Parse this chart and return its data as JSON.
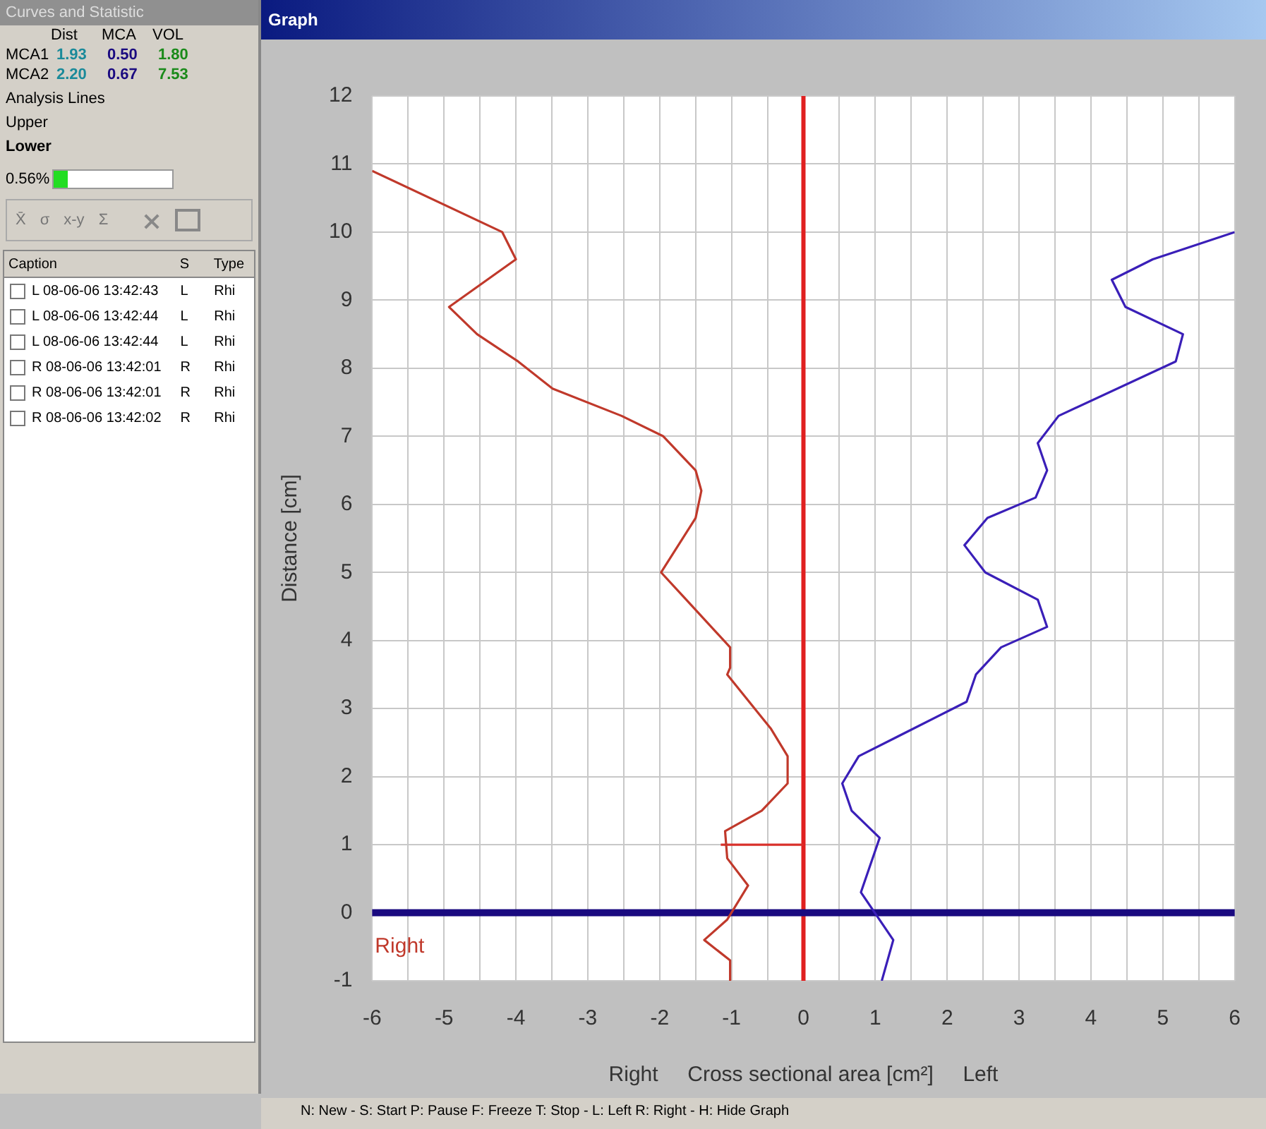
{
  "chart_data": [
    {
      "type": "other",
      "title": "Curves and Statistic",
      "annotations": [
        "Dist  MCA  VOL",
        "MCA1  1.93  0.50  1.80",
        "MCA2  2.20  0.67  7.53",
        "Analysis Lines",
        "Upper",
        "Lower",
        "0.56%",
        "X̄  σ  x-y  Σ",
        "Caption  S  Type",
        "L 08-06-06 13:42:43  L  Rhi",
        "L 08-06-06 13:42:44  L  Rhi",
        "L 08-06-06 13:42:44  L  Rhi",
        "R 08-06-06 13:42:01  R  Rhi",
        "R 08-06-06 13:42:01  R  Rhi",
        "R 08-06-06 13:42:02  R  Rhi"
      ]
    },
    {
      "type": "line",
      "title": "Graph",
      "xlabel": "Right     Cross sectional area [cm²]     Left",
      "ylabel": "Distance [cm]",
      "xlim": [
        -6,
        6
      ],
      "xticks": [
        -6,
        {
          "value": -5.5,
          "label": null
        },
        -5,
        {
          "value": -4.5,
          "label": null
        },
        -4,
        {
          "value": -3.5,
          "label": null
        },
        -3,
        {
          "value": -2.5,
          "label": null
        },
        -2,
        {
          "value": -1.5,
          "label": null
        },
        -1,
        {
          "value": -0.5,
          "label": null
        },
        0,
        {
          "value": 0.5,
          "label": null
        },
        1,
        {
          "value": 1.5,
          "label": null
        },
        2,
        {
          "value": 2.5,
          "label": null
        },
        3,
        {
          "value": 3.5,
          "label": null
        },
        4,
        {
          "value": 4.5,
          "label": null
        },
        5,
        {
          "value": 5.5,
          "label": null
        },
        6
      ],
      "ylim": [
        -1,
        12
      ],
      "yticks": [
        -1,
        0,
        1,
        2,
        3,
        4,
        5,
        6,
        7,
        8,
        9,
        10,
        11,
        12
      ],
      "grid": true,
      "legend": false,
      "series": [
        {
          "color": "#c0392b",
          "x": [
            -6,
            -4.19,
            -4.0,
            -4.93,
            -4.54,
            -3.97,
            -3.49,
            -2.53,
            -1.95,
            -1.5,
            -1.42,
            -1.5,
            -1.98,
            -1.63,
            -1.02,
            -1.02,
            -1.06,
            -0.45,
            -0.22,
            -0.22,
            -0.58,
            -1.09,
            -1.06,
            -0.77,
            -1.06,
            -1.38,
            -1.02,
            -1.02
          ],
          "values": [
            10.9,
            10.0,
            9.6,
            8.9,
            8.5,
            8.1,
            7.7,
            7.3,
            7.0,
            6.5,
            6.2,
            5.8,
            5.0,
            4.6,
            3.9,
            3.6,
            3.5,
            2.7,
            2.3,
            1.9,
            1.5,
            1.2,
            0.8,
            0.4,
            -0.1,
            -0.4,
            -0.7,
            -1.0
          ]
        },
        {
          "color": "#3a1fb8",
          "x": [
            6.0,
            4.86,
            4.29,
            4.48,
            5.28,
            5.18,
            3.55,
            3.26,
            3.39,
            3.23,
            2.56,
            2.24,
            2.53,
            3.26,
            3.39,
            2.75,
            2.4,
            2.27,
            0.77,
            0.54,
            0.67,
            1.06,
            0.8,
            1.25,
            1.09
          ],
          "values": [
            10.0,
            9.6,
            9.3,
            8.9,
            8.5,
            8.1,
            7.3,
            6.9,
            6.5,
            6.1,
            5.8,
            5.4,
            5.0,
            4.6,
            4.2,
            3.9,
            3.5,
            3.1,
            2.3,
            1.9,
            1.5,
            1.1,
            0.3,
            -0.4,
            -1.0
          ]
        },
        {
          "color": "#d9302a",
          "x": [
            -1.15,
            0
          ],
          "values": [
            1.0,
            1.0
          ]
        }
      ],
      "ref_lines": [
        {
          "axis": "x",
          "value": 0,
          "color": "#e02020"
        },
        {
          "axis": "y",
          "value": 0,
          "color": "#1a0a80"
        }
      ],
      "annotations": [
        "Right",
        "N: New - S: Start P: Pause F: Freeze T: Stop - L: Left R: Right - H: Hide Graph"
      ]
    }
  ]
}
